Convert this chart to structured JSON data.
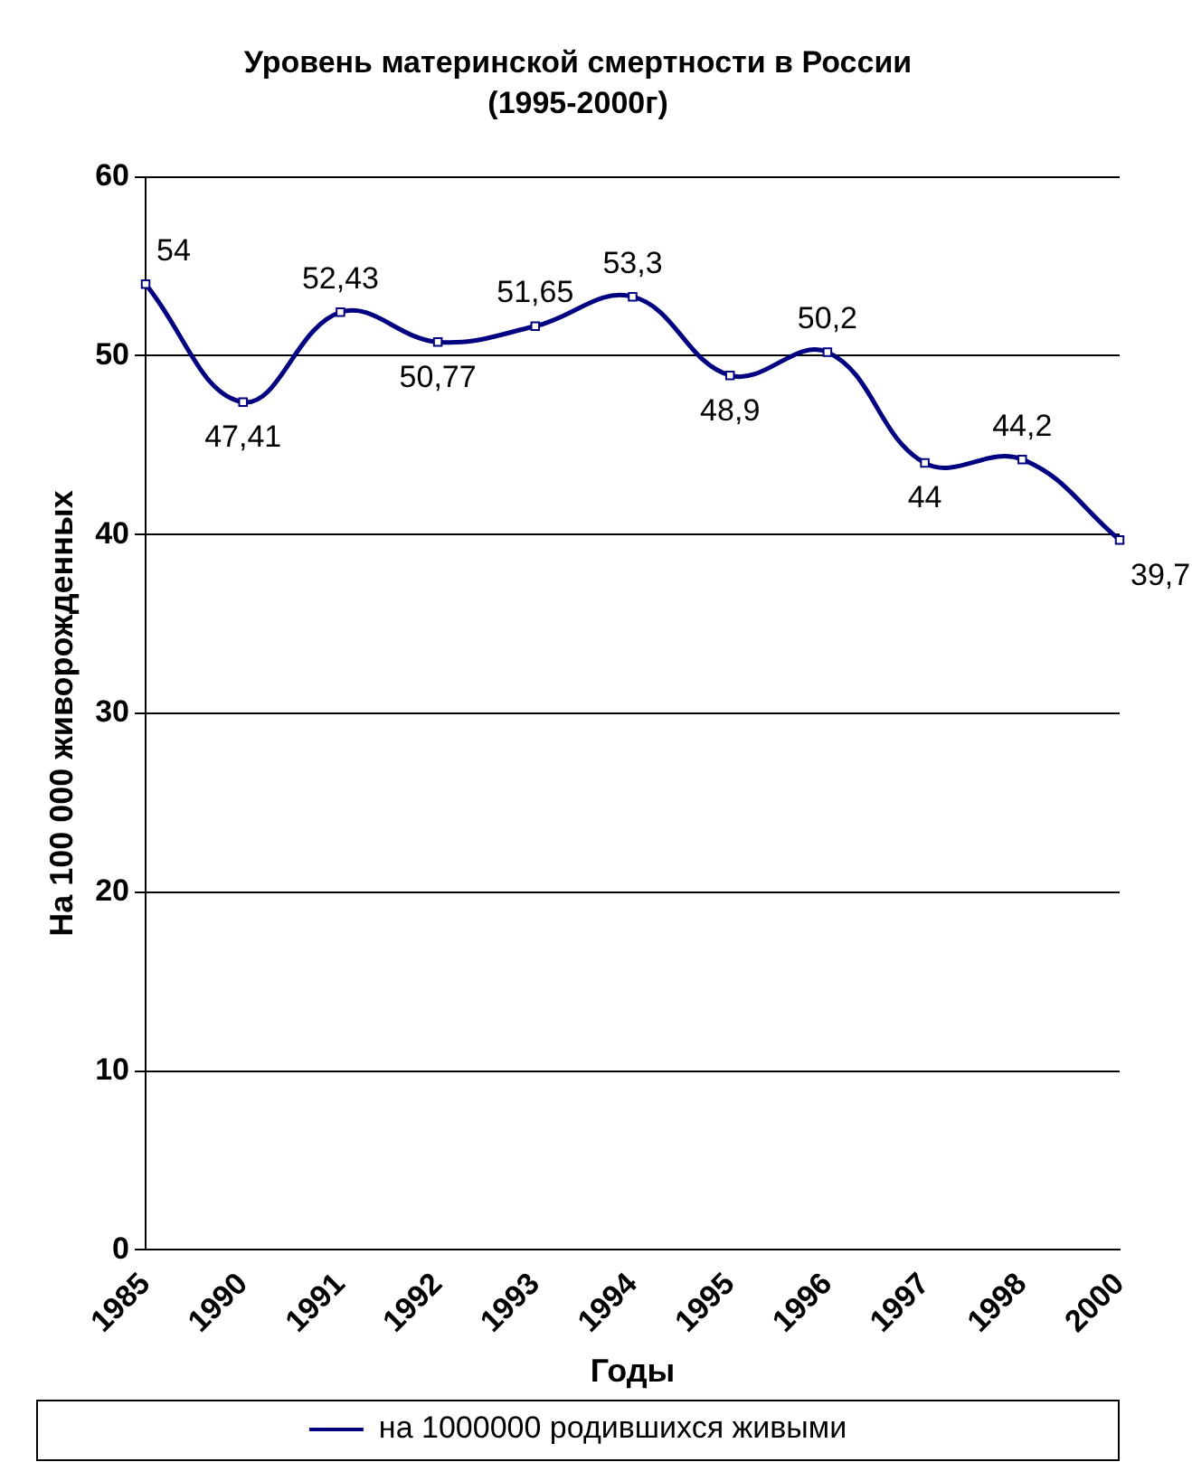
{
  "chart_data": {
    "type": "line",
    "title": "Уровень материнской смертности в России",
    "subtitle": "(1995-2000г)",
    "xlabel": "Годы",
    "ylabel": "На 100 000 живорожденных",
    "categories": [
      "1985",
      "1990",
      "1991",
      "1992",
      "1993",
      "1994",
      "1995",
      "1996",
      "1997",
      "1998",
      "2000"
    ],
    "series": [
      {
        "name": "на 1000000 родившихся живыми",
        "color": "#000080",
        "values": [
          54,
          47.41,
          52.43,
          50.77,
          51.65,
          53.3,
          48.9,
          50.2,
          44,
          44.2,
          39.7
        ],
        "value_labels": [
          "54",
          "47,41",
          "52,43",
          "50,77",
          "51,65",
          "53,3",
          "48,9",
          "50,2",
          "44",
          "44,2",
          "39,7"
        ]
      }
    ],
    "ylim": [
      0,
      60
    ],
    "yticks": [
      0,
      10,
      20,
      30,
      40,
      50,
      60
    ],
    "grid": "y",
    "legend": "bottom",
    "marker": "square",
    "line_style": "solid"
  }
}
